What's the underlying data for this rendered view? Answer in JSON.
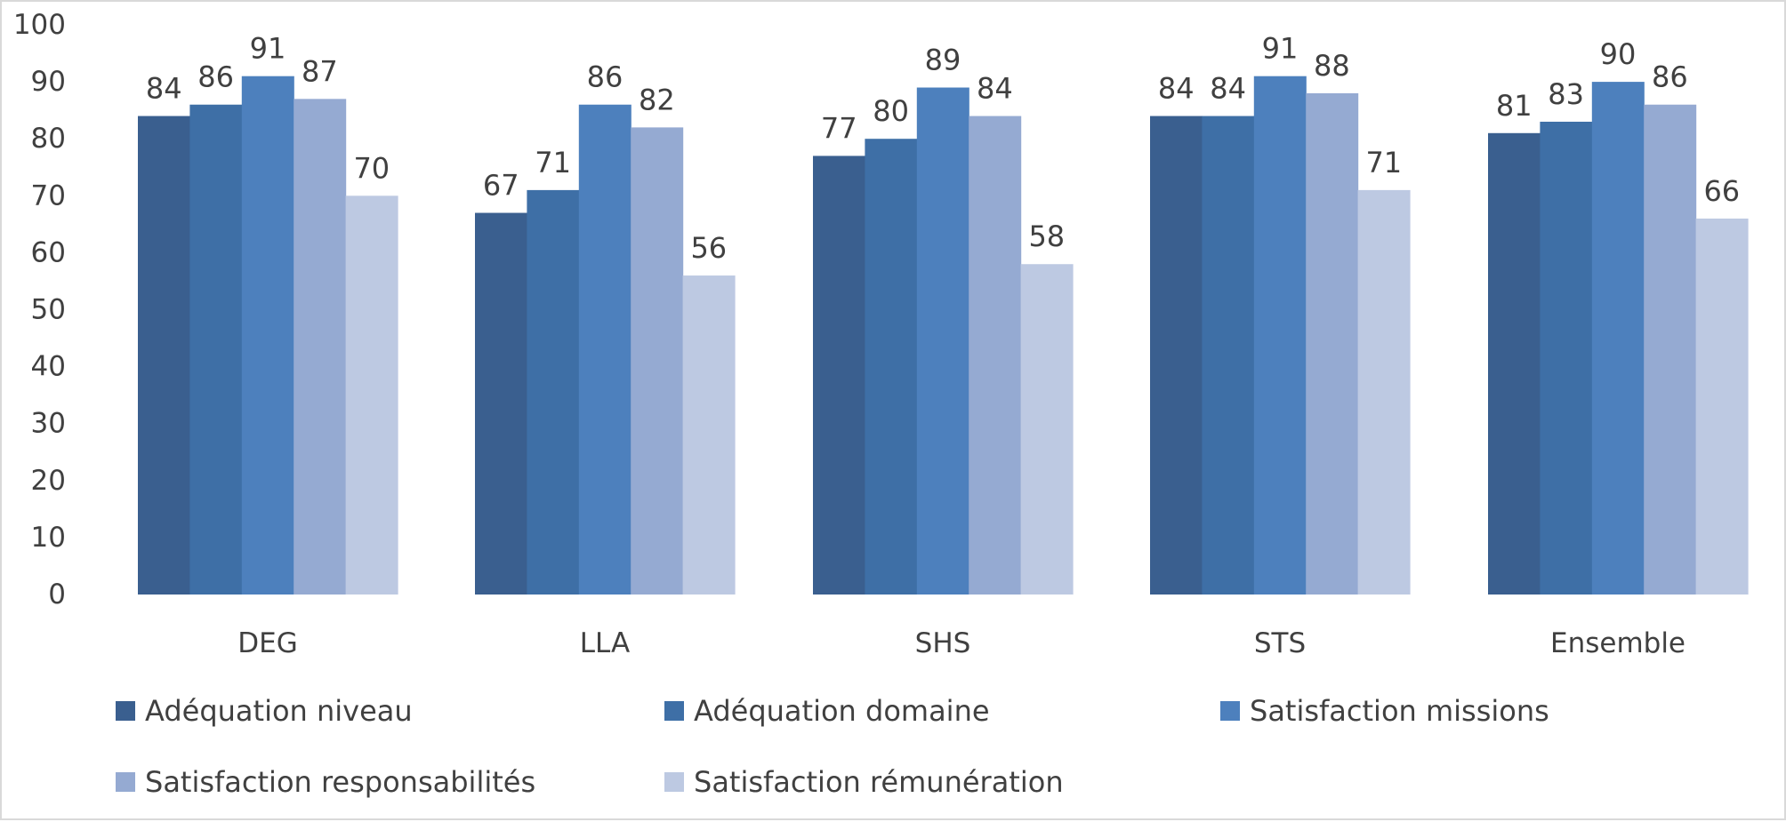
{
  "chart_data": {
    "type": "bar",
    "title": "",
    "xlabel": "",
    "ylabel": "",
    "categories": [
      "DEG",
      "LLA",
      "SHS",
      "STS",
      "Ensemble"
    ],
    "ylim": [
      0,
      100
    ],
    "yticks": [
      0,
      10,
      20,
      30,
      40,
      50,
      60,
      70,
      80,
      90,
      100
    ],
    "grid": false,
    "legend_position": "bottom",
    "data_labels": true,
    "series": [
      {
        "name": "Adéquation niveau",
        "color": "#3a5f8f",
        "values": [
          84,
          67,
          77,
          84,
          81
        ]
      },
      {
        "name": "Adéquation domaine",
        "color": "#3e6fa6",
        "values": [
          86,
          71,
          80,
          84,
          83
        ]
      },
      {
        "name": "Satisfaction missions",
        "color": "#4d80bd",
        "values": [
          91,
          86,
          89,
          91,
          90
        ]
      },
      {
        "name": "Satisfaction responsabilités",
        "color": "#95aad2",
        "values": [
          87,
          82,
          84,
          88,
          86
        ]
      },
      {
        "name": "Satisfaction rémunération",
        "color": "#bdc9e2",
        "values": [
          70,
          56,
          58,
          71,
          66
        ]
      }
    ]
  }
}
